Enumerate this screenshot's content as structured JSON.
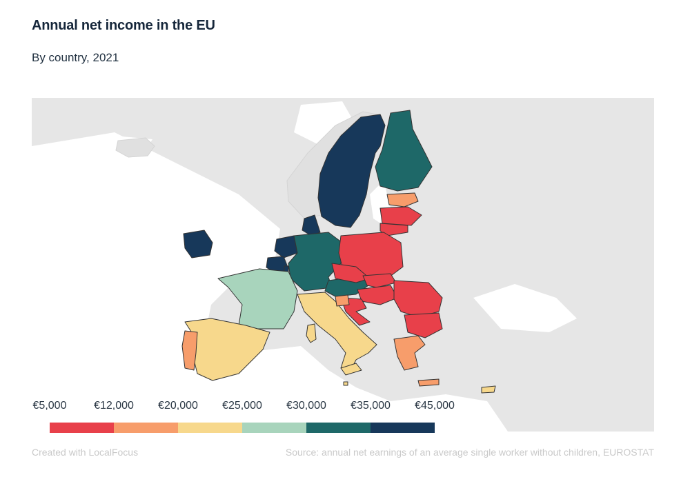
{
  "header": {
    "title": "Annual net income in the EU",
    "subtitle": "By country, 2021"
  },
  "legend": {
    "ticks": [
      "€5,000",
      "€12,000",
      "€20,000",
      "€25,000",
      "€30,000",
      "€35,000",
      "€45,000"
    ],
    "colors": [
      "#e8404a",
      "#f79d6b",
      "#f7d88c",
      "#a8d4bc",
      "#1e6868",
      "#17385a"
    ]
  },
  "map": {
    "background_land": "#e6e6e6",
    "sea": "#ffffff",
    "regions": [
      {
        "name": "Sweden",
        "bin": 5
      },
      {
        "name": "Finland",
        "bin": 4
      },
      {
        "name": "Norway",
        "bin": null
      },
      {
        "name": "Denmark",
        "bin": 5
      },
      {
        "name": "Ireland",
        "bin": 5
      },
      {
        "name": "Netherlands",
        "bin": 5
      },
      {
        "name": "Belgium",
        "bin": 5
      },
      {
        "name": "Luxembourg",
        "bin": 5
      },
      {
        "name": "Germany",
        "bin": 4
      },
      {
        "name": "Austria",
        "bin": 4
      },
      {
        "name": "France",
        "bin": 3
      },
      {
        "name": "Spain",
        "bin": 2
      },
      {
        "name": "Portugal",
        "bin": 1
      },
      {
        "name": "Italy",
        "bin": 2
      },
      {
        "name": "Estonia",
        "bin": 1
      },
      {
        "name": "Latvia",
        "bin": 0
      },
      {
        "name": "Lithuania",
        "bin": 0
      },
      {
        "name": "Poland",
        "bin": 0
      },
      {
        "name": "Czechia",
        "bin": 0
      },
      {
        "name": "Slovakia",
        "bin": 0
      },
      {
        "name": "Hungary",
        "bin": 0
      },
      {
        "name": "Romania",
        "bin": 0
      },
      {
        "name": "Bulgaria",
        "bin": 0
      },
      {
        "name": "Croatia",
        "bin": 0
      },
      {
        "name": "Slovenia",
        "bin": 1
      },
      {
        "name": "Greece",
        "bin": 1
      },
      {
        "name": "Cyprus",
        "bin": 2
      },
      {
        "name": "Malta",
        "bin": 2
      }
    ]
  },
  "footer": {
    "credit": "Created with LocalFocus",
    "source": "Source:  annual net earnings of an average single worker without children, EUROSTAT"
  }
}
